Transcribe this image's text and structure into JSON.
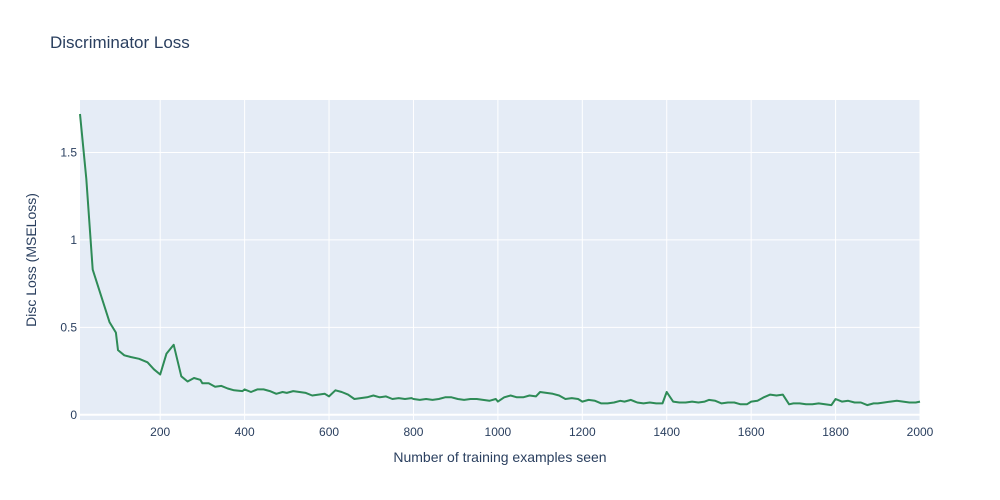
{
  "chart_data": {
    "type": "line",
    "title": "Discriminator Loss",
    "xlabel": "Number of training examples seen",
    "ylabel": "Disc Loss (MSELoss)",
    "xlim": [
      10,
      2000
    ],
    "ylim": [
      -0.03,
      1.8
    ],
    "x_ticks": [
      200,
      400,
      600,
      800,
      1000,
      1200,
      1400,
      1600,
      1800,
      2000
    ],
    "x_tick_labels": [
      "200",
      "400",
      "600",
      "800",
      "1000",
      "1200",
      "1400",
      "1600",
      "1800",
      "2000"
    ],
    "y_ticks": [
      0,
      0.5,
      1,
      1.5
    ],
    "y_tick_labels": [
      "0",
      "0.5",
      "1",
      "1.5"
    ],
    "grid": true,
    "colors": {
      "plot_bg": "#e5ecf6",
      "grid": "#ffffff",
      "line": "#2e8b57",
      "text": "#2a3f5f"
    },
    "series": [
      {
        "x": [
          10,
          25,
          40,
          60,
          80,
          95,
          100,
          115,
          130,
          150,
          170,
          185,
          200,
          215,
          232,
          250,
          265,
          280,
          295,
          300,
          315,
          330,
          345,
          360,
          375,
          395,
          400,
          415,
          430,
          445,
          460,
          475,
          490,
          500,
          515,
          530,
          545,
          560,
          575,
          590,
          600,
          615,
          630,
          645,
          660,
          675,
          690,
          705,
          720,
          735,
          750,
          765,
          780,
          795,
          800,
          815,
          830,
          845,
          860,
          875,
          890,
          905,
          920,
          935,
          950,
          965,
          980,
          995,
          1000,
          1015,
          1030,
          1045,
          1060,
          1075,
          1090,
          1100,
          1115,
          1130,
          1145,
          1160,
          1175,
          1190,
          1200,
          1215,
          1230,
          1245,
          1260,
          1275,
          1290,
          1300,
          1315,
          1330,
          1345,
          1360,
          1375,
          1390,
          1400,
          1415,
          1430,
          1445,
          1460,
          1475,
          1490,
          1500,
          1515,
          1530,
          1545,
          1560,
          1575,
          1590,
          1600,
          1615,
          1630,
          1645,
          1660,
          1675,
          1690,
          1700,
          1715,
          1730,
          1745,
          1760,
          1775,
          1790,
          1800,
          1815,
          1830,
          1845,
          1860,
          1875,
          1890,
          1900,
          1915,
          1930,
          1945,
          1960,
          1975,
          1990,
          2000
        ],
        "y": [
          1.72,
          1.35,
          0.83,
          0.68,
          0.53,
          0.47,
          0.37,
          0.34,
          0.33,
          0.32,
          0.3,
          0.26,
          0.23,
          0.35,
          0.4,
          0.22,
          0.19,
          0.21,
          0.2,
          0.18,
          0.18,
          0.16,
          0.165,
          0.15,
          0.14,
          0.135,
          0.145,
          0.13,
          0.145,
          0.145,
          0.135,
          0.12,
          0.13,
          0.125,
          0.135,
          0.13,
          0.125,
          0.11,
          0.115,
          0.12,
          0.105,
          0.14,
          0.13,
          0.115,
          0.09,
          0.095,
          0.1,
          0.11,
          0.1,
          0.105,
          0.09,
          0.095,
          0.09,
          0.095,
          0.09,
          0.085,
          0.09,
          0.085,
          0.09,
          0.1,
          0.1,
          0.09,
          0.085,
          0.09,
          0.09,
          0.085,
          0.08,
          0.09,
          0.075,
          0.1,
          0.11,
          0.1,
          0.1,
          0.11,
          0.105,
          0.13,
          0.125,
          0.12,
          0.11,
          0.09,
          0.095,
          0.09,
          0.075,
          0.085,
          0.08,
          0.065,
          0.065,
          0.07,
          0.08,
          0.075,
          0.085,
          0.07,
          0.065,
          0.07,
          0.065,
          0.065,
          0.13,
          0.075,
          0.07,
          0.07,
          0.075,
          0.07,
          0.075,
          0.085,
          0.08,
          0.065,
          0.07,
          0.07,
          0.06,
          0.06,
          0.075,
          0.08,
          0.1,
          0.115,
          0.11,
          0.115,
          0.06,
          0.065,
          0.065,
          0.06,
          0.06,
          0.065,
          0.06,
          0.055,
          0.09,
          0.075,
          0.08,
          0.07,
          0.07,
          0.055,
          0.065,
          0.065,
          0.07,
          0.075,
          0.08,
          0.075,
          0.07,
          0.07,
          0.075
        ]
      }
    ]
  }
}
